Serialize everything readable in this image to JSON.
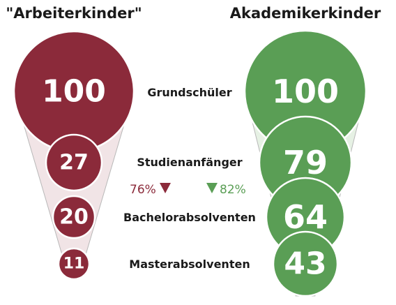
{
  "chart_data": {
    "type": "bubble-funnel",
    "stages": [
      "Grundschüler",
      "Studienanfänger",
      "Bachelorabsolventen",
      "Masterabsolventen"
    ],
    "series": [
      {
        "name": "\"Arbeiterkinder\"",
        "values": [
          100,
          27,
          20,
          11
        ],
        "color": "#8b2a3a"
      },
      {
        "name": "Akademikerkinder",
        "values": [
          100,
          79,
          64,
          43
        ],
        "color": "#5a9e55"
      }
    ],
    "annotations": [
      {
        "series": 0,
        "text": "76%",
        "color": "#8b2a3a"
      },
      {
        "series": 1,
        "text": "82%",
        "color": "#5a9e55"
      }
    ]
  }
}
